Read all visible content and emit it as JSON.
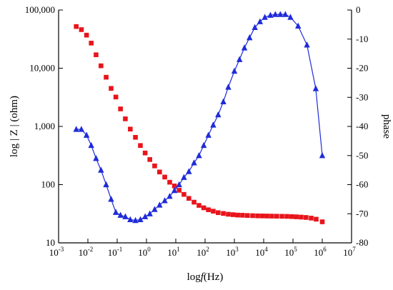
{
  "chart_data": {
    "type": "scatter",
    "x_axis": {
      "label_prefix": "log",
      "label_var": "f",
      "label_suffix": "(Hz)",
      "scale": "log",
      "range": [
        0.001,
        10000000
      ],
      "ticks": [
        {
          "base": "10",
          "exp": "-3",
          "value": 0.001
        },
        {
          "base": "10",
          "exp": "-2",
          "value": 0.01
        },
        {
          "base": "10",
          "exp": "-1",
          "value": 0.1
        },
        {
          "base": "10",
          "exp": "0",
          "value": 1
        },
        {
          "base": "10",
          "exp": "1",
          "value": 10
        },
        {
          "base": "10",
          "exp": "2",
          "value": 100
        },
        {
          "base": "10",
          "exp": "3",
          "value": 1000
        },
        {
          "base": "10",
          "exp": "4",
          "value": 10000
        },
        {
          "base": "10",
          "exp": "5",
          "value": 100000
        },
        {
          "base": "10",
          "exp": "6",
          "value": 1000000
        },
        {
          "base": "10",
          "exp": "7",
          "value": 10000000
        }
      ]
    },
    "y_left": {
      "label": "log | Z | (ohm)",
      "scale": "log",
      "range": [
        10,
        100000
      ],
      "ticks": [
        {
          "label": "10",
          "value": 10
        },
        {
          "label": "100",
          "value": 100
        },
        {
          "label": "1,000",
          "value": 1000
        },
        {
          "label": "10,000",
          "value": 10000
        },
        {
          "label": "100,000",
          "value": 100000
        }
      ]
    },
    "y_right": {
      "label": "phase",
      "scale": "linear",
      "range": [
        -80,
        0
      ],
      "ticks": [
        {
          "label": "0",
          "value": 0
        },
        {
          "label": "-10",
          "value": -10
        },
        {
          "label": "-20",
          "value": -20
        },
        {
          "label": "-30",
          "value": -30
        },
        {
          "label": "-40",
          "value": -40
        },
        {
          "label": "-50",
          "value": -50
        },
        {
          "label": "-60",
          "value": -60
        },
        {
          "label": "-70",
          "value": -70
        },
        {
          "label": "-80",
          "value": -80
        }
      ]
    },
    "grid": false,
    "series": [
      {
        "marker": "square",
        "axis": "left",
        "color": "#e8141b",
        "line": false,
        "x": [
          0.004,
          0.006,
          0.009,
          0.013,
          0.019,
          0.028,
          0.042,
          0.062,
          0.09,
          0.13,
          0.19,
          0.28,
          0.42,
          0.62,
          0.9,
          1.3,
          1.9,
          2.8,
          4.2,
          6.2,
          9,
          13,
          19,
          28,
          42,
          62,
          90,
          130,
          190,
          280,
          420,
          620,
          900,
          1300,
          1900,
          2800,
          4200,
          6200,
          9000,
          13000,
          19000,
          28000,
          42000,
          62000,
          90000,
          130000,
          190000,
          280000,
          420000,
          620000,
          1000000
        ],
        "y": [
          52000,
          46000,
          37000,
          27000,
          17000,
          11000,
          7000,
          4500,
          3200,
          2000,
          1350,
          900,
          650,
          470,
          350,
          270,
          210,
          165,
          135,
          110,
          95,
          80,
          68,
          58,
          50,
          44,
          40,
          37,
          35,
          33,
          32,
          31,
          30.5,
          30,
          29.8,
          29.5,
          29.3,
          29.1,
          29,
          28.9,
          28.8,
          28.7,
          28.6,
          28.5,
          28.3,
          28,
          27.7,
          27.3,
          26.6,
          25.5,
          23
        ]
      },
      {
        "marker": "triangle",
        "axis": "right",
        "color": "#1f2bd9",
        "line": true,
        "x": [
          0.004,
          0.006,
          0.009,
          0.013,
          0.019,
          0.028,
          0.042,
          0.062,
          0.09,
          0.13,
          0.19,
          0.28,
          0.42,
          0.62,
          0.9,
          1.3,
          1.9,
          2.8,
          4.2,
          6.2,
          9,
          13,
          19,
          28,
          42,
          62,
          90,
          130,
          190,
          280,
          420,
          620,
          1000,
          1500,
          2200,
          3300,
          5000,
          7500,
          11000,
          17000,
          25000,
          37000,
          55000,
          82000,
          150000,
          300000,
          600000,
          1000000
        ],
        "y": [
          -41,
          -41,
          -43,
          -46.5,
          -51,
          -55,
          -60,
          -65,
          -69.5,
          -70.5,
          -71,
          -72,
          -72.3,
          -72,
          -71,
          -70,
          -68.5,
          -67,
          -65.5,
          -64,
          -62,
          -60,
          -57.5,
          -55.5,
          -52.5,
          -50,
          -46.5,
          -43,
          -39.5,
          -36,
          -31.5,
          -26.5,
          -21,
          -17,
          -13,
          -9.5,
          -6,
          -4,
          -2.5,
          -1.8,
          -1.5,
          -1.5,
          -1.5,
          -2.5,
          -5.5,
          -12,
          -27,
          -50
        ]
      }
    ]
  }
}
